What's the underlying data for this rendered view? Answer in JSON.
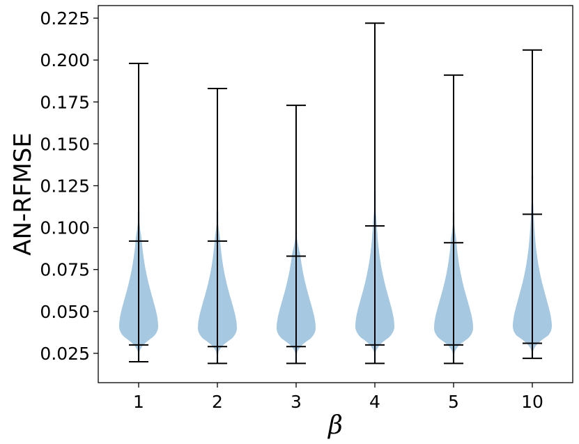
{
  "chart_data": {
    "type": "violin",
    "xlabel": "β",
    "ylabel": "AN-RFMSE",
    "categories": [
      "1",
      "2",
      "3",
      "4",
      "5",
      "10"
    ],
    "ylim": [
      0.0075,
      0.2325
    ],
    "yticks": [
      0.025,
      0.05,
      0.075,
      0.1,
      0.125,
      0.15,
      0.175,
      0.2,
      0.225
    ],
    "ytick_labels": [
      "0.025",
      "0.050",
      "0.075",
      "0.100",
      "0.125",
      "0.150",
      "0.175",
      "0.200",
      "0.225"
    ],
    "grid": false,
    "legend": "none",
    "colors": {
      "violin": "#a6c8e1",
      "line": "#000000"
    },
    "violins": [
      {
        "category": "1",
        "min": 0.02,
        "q3": 0.03,
        "p95": 0.092,
        "max": 0.198,
        "mode": 0.041
      },
      {
        "category": "2",
        "min": 0.019,
        "q3": 0.029,
        "p95": 0.092,
        "max": 0.183,
        "mode": 0.04
      },
      {
        "category": "3",
        "min": 0.019,
        "q3": 0.029,
        "p95": 0.083,
        "max": 0.173,
        "mode": 0.04
      },
      {
        "category": "4",
        "min": 0.019,
        "q3": 0.03,
        "p95": 0.101,
        "max": 0.222,
        "mode": 0.041
      },
      {
        "category": "5",
        "min": 0.019,
        "q3": 0.03,
        "p95": 0.091,
        "max": 0.191,
        "mode": 0.04
      },
      {
        "category": "10",
        "min": 0.022,
        "q3": 0.031,
        "p95": 0.108,
        "max": 0.206,
        "mode": 0.041
      }
    ]
  }
}
